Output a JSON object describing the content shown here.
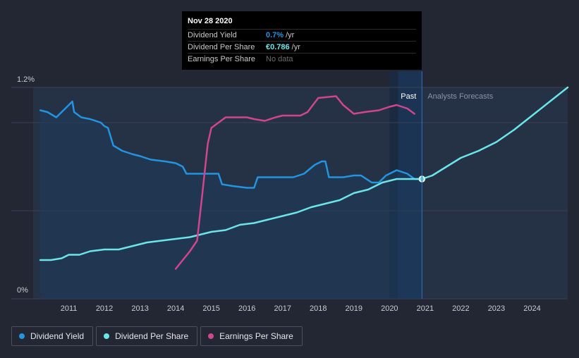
{
  "tooltip": {
    "date": "Nov 28 2020",
    "rows": [
      {
        "label": "Dividend Yield",
        "value": "0.7%",
        "unit": "/yr",
        "color": "#2394df"
      },
      {
        "label": "Dividend Per Share",
        "value": "€0.786",
        "unit": "/yr",
        "color": "#6ce5e8"
      },
      {
        "label": "Earnings Per Share",
        "value": "No data",
        "unit": "",
        "color": "#6b6b6b"
      }
    ]
  },
  "legend": [
    {
      "label": "Dividend Yield",
      "color": "#2394df"
    },
    {
      "label": "Dividend Per Share",
      "color": "#6ce5e8"
    },
    {
      "label": "Earnings Per Share",
      "color": "#d0468c"
    }
  ],
  "chart_data": {
    "type": "line",
    "y_tick_labels": [
      "1.2%",
      "0%"
    ],
    "ylim": [
      0,
      1.2
    ],
    "xlim": [
      2010.0,
      2025.0
    ],
    "x_ticks": [
      2011,
      2012,
      2013,
      2014,
      2015,
      2016,
      2017,
      2018,
      2019,
      2020,
      2021,
      2022,
      2023,
      2024
    ],
    "x_tick_labels": [
      "2011",
      "2012",
      "2013",
      "2014",
      "2015",
      "2016",
      "2017",
      "2018",
      "2019",
      "2020",
      "2021",
      "2022",
      "2023",
      "2024"
    ],
    "past_label": "Past",
    "forecast_label": "Analysts Forecasts",
    "past_start": 2020.0,
    "split_x": 2020.91,
    "marker_x": 2020.91,
    "grid": true,
    "series": [
      {
        "name": "Dividend Yield",
        "color": "#2394df",
        "axis": "yield",
        "points": [
          [
            2010.2,
            1.07
          ],
          [
            2010.4,
            1.06
          ],
          [
            2010.65,
            1.03
          ],
          [
            2010.85,
            1.07
          ],
          [
            2011.1,
            1.12
          ],
          [
            2011.15,
            1.06
          ],
          [
            2011.35,
            1.03
          ],
          [
            2011.6,
            1.02
          ],
          [
            2011.9,
            1.0
          ],
          [
            2012.0,
            0.98
          ],
          [
            2012.1,
            0.97
          ],
          [
            2012.25,
            0.87
          ],
          [
            2012.5,
            0.84
          ],
          [
            2012.8,
            0.82
          ],
          [
            2013.0,
            0.81
          ],
          [
            2013.3,
            0.79
          ],
          [
            2013.7,
            0.78
          ],
          [
            2014.0,
            0.77
          ],
          [
            2014.2,
            0.75
          ],
          [
            2014.3,
            0.71
          ],
          [
            2014.6,
            0.71
          ],
          [
            2015.0,
            0.71
          ],
          [
            2015.2,
            0.71
          ],
          [
            2015.3,
            0.65
          ],
          [
            2015.6,
            0.64
          ],
          [
            2016.0,
            0.63
          ],
          [
            2016.2,
            0.63
          ],
          [
            2016.3,
            0.69
          ],
          [
            2016.6,
            0.69
          ],
          [
            2017.0,
            0.69
          ],
          [
            2017.3,
            0.69
          ],
          [
            2017.6,
            0.71
          ],
          [
            2017.9,
            0.76
          ],
          [
            2018.1,
            0.78
          ],
          [
            2018.2,
            0.78
          ],
          [
            2018.3,
            0.69
          ],
          [
            2018.7,
            0.69
          ],
          [
            2019.0,
            0.7
          ],
          [
            2019.2,
            0.7
          ],
          [
            2019.5,
            0.66
          ],
          [
            2019.7,
            0.66
          ],
          [
            2019.9,
            0.7
          ],
          [
            2020.2,
            0.73
          ],
          [
            2020.5,
            0.71
          ],
          [
            2020.7,
            0.68
          ],
          [
            2020.91,
            0.68
          ]
        ]
      },
      {
        "name": "Dividend Per Share",
        "color": "#6ce5e8",
        "axis": "yield",
        "points": [
          [
            2010.2,
            0.22
          ],
          [
            2010.5,
            0.22
          ],
          [
            2010.8,
            0.23
          ],
          [
            2011.0,
            0.25
          ],
          [
            2011.3,
            0.25
          ],
          [
            2011.6,
            0.27
          ],
          [
            2012.0,
            0.28
          ],
          [
            2012.4,
            0.28
          ],
          [
            2012.8,
            0.3
          ],
          [
            2013.2,
            0.32
          ],
          [
            2013.6,
            0.33
          ],
          [
            2014.0,
            0.34
          ],
          [
            2014.4,
            0.35
          ],
          [
            2014.8,
            0.37
          ],
          [
            2015.0,
            0.38
          ],
          [
            2015.4,
            0.39
          ],
          [
            2015.8,
            0.42
          ],
          [
            2016.2,
            0.43
          ],
          [
            2016.6,
            0.45
          ],
          [
            2017.0,
            0.47
          ],
          [
            2017.4,
            0.49
          ],
          [
            2017.8,
            0.52
          ],
          [
            2018.2,
            0.54
          ],
          [
            2018.6,
            0.56
          ],
          [
            2019.0,
            0.6
          ],
          [
            2019.4,
            0.62
          ],
          [
            2019.8,
            0.66
          ],
          [
            2020.2,
            0.68
          ],
          [
            2020.6,
            0.68
          ],
          [
            2020.91,
            0.68
          ],
          [
            2021.2,
            0.7
          ],
          [
            2021.6,
            0.75
          ],
          [
            2022.0,
            0.8
          ],
          [
            2022.5,
            0.84
          ],
          [
            2023.0,
            0.89
          ],
          [
            2023.5,
            0.96
          ],
          [
            2024.0,
            1.04
          ],
          [
            2024.5,
            1.12
          ],
          [
            2025.0,
            1.2
          ]
        ]
      },
      {
        "name": "Earnings Per Share",
        "color": "#d0468c",
        "axis": "eps",
        "points": [
          [
            2014.0,
            0.17
          ],
          [
            2014.2,
            0.22
          ],
          [
            2014.4,
            0.27
          ],
          [
            2014.6,
            0.33
          ],
          [
            2014.75,
            0.6
          ],
          [
            2014.9,
            0.88
          ],
          [
            2015.0,
            0.97
          ],
          [
            2015.2,
            1.0
          ],
          [
            2015.4,
            1.03
          ],
          [
            2015.6,
            1.03
          ],
          [
            2016.0,
            1.03
          ],
          [
            2016.2,
            1.02
          ],
          [
            2016.5,
            1.01
          ],
          [
            2016.8,
            1.03
          ],
          [
            2017.0,
            1.04
          ],
          [
            2017.5,
            1.04
          ],
          [
            2017.7,
            1.06
          ],
          [
            2018.0,
            1.14
          ],
          [
            2018.5,
            1.15
          ],
          [
            2018.7,
            1.1
          ],
          [
            2019.0,
            1.05
          ],
          [
            2019.3,
            1.06
          ],
          [
            2019.7,
            1.07
          ],
          [
            2020.0,
            1.09
          ],
          [
            2020.2,
            1.1
          ],
          [
            2020.5,
            1.08
          ],
          [
            2020.7,
            1.05
          ]
        ]
      }
    ]
  }
}
